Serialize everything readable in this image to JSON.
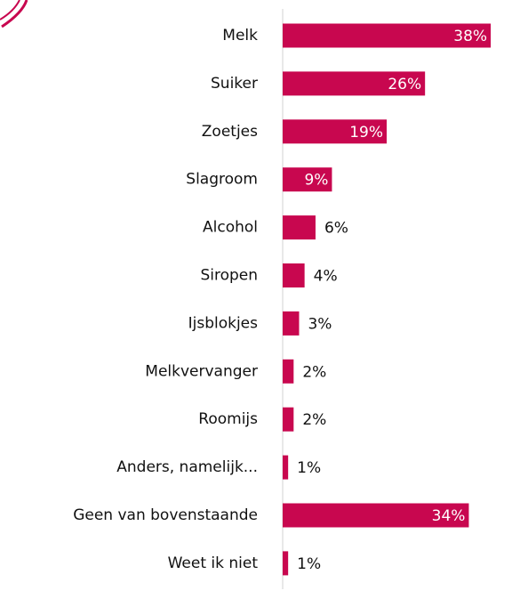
{
  "chart_data": {
    "type": "bar",
    "orientation": "horizontal",
    "categories": [
      "Melk",
      "Suiker",
      "Zoetjes",
      "Slagroom",
      "Alcohol",
      "Siropen",
      "Ijsblokjes",
      "Melkvervanger",
      "Roomijs",
      "Anders, namelijk...",
      "Geen van bovenstaande",
      "Weet ik niet"
    ],
    "values": [
      38,
      26,
      19,
      9,
      6,
      4,
      3,
      2,
      2,
      1,
      34,
      1
    ],
    "value_labels": [
      "38%",
      "26%",
      "19%",
      "9%",
      "6%",
      "4%",
      "3%",
      "2%",
      "2%",
      "1%",
      "34%",
      "1%"
    ],
    "color": "#c8074f"
  }
}
